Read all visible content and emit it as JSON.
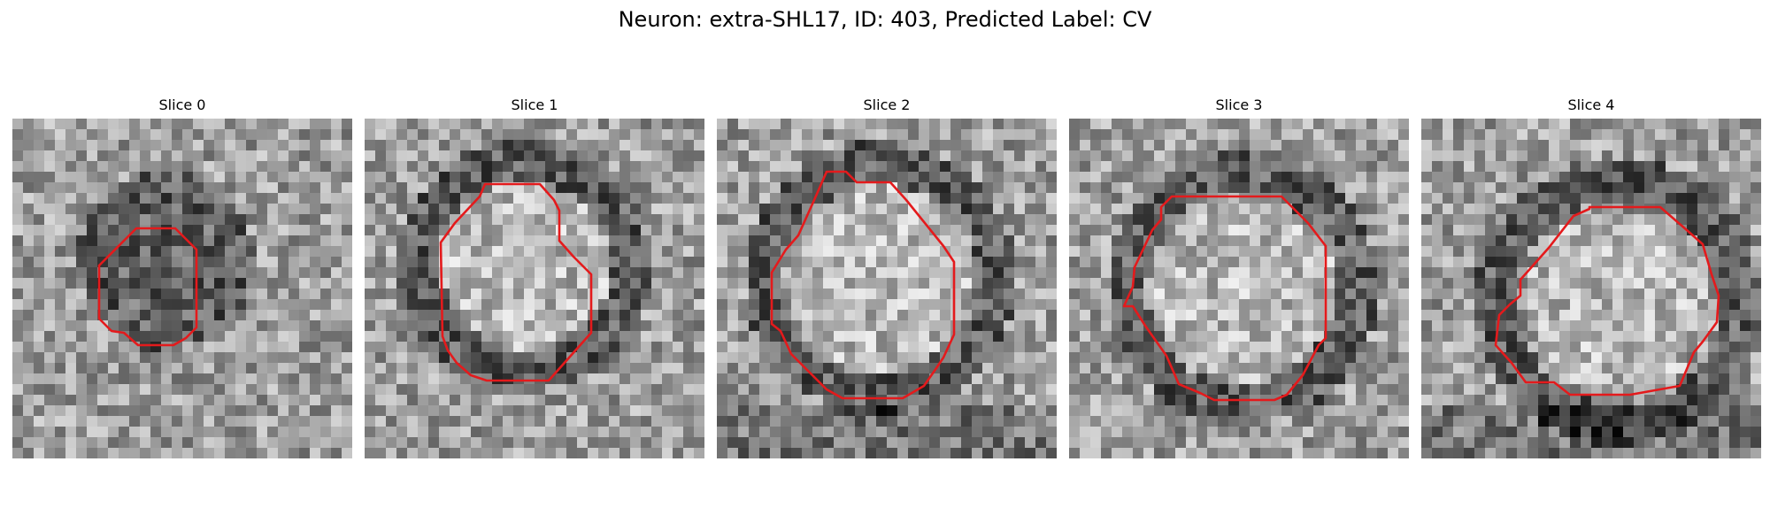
{
  "figure": {
    "title": "Neuron: extra-SHL17, ID: 403, Predicted Label: CV"
  },
  "slices": [
    {
      "label": "Slice 0",
      "contour_color": "#e41a1c"
    },
    {
      "label": "Slice 1",
      "contour_color": "#e41a1c"
    },
    {
      "label": "Slice 2",
      "contour_color": "#e41a1c"
    },
    {
      "label": "Slice 3",
      "contour_color": "#e41a1c"
    },
    {
      "label": "Slice 4",
      "contour_color": "#e41a1c"
    }
  ],
  "colors": {
    "contour": "#e41a1c",
    "background": "#ffffff"
  }
}
